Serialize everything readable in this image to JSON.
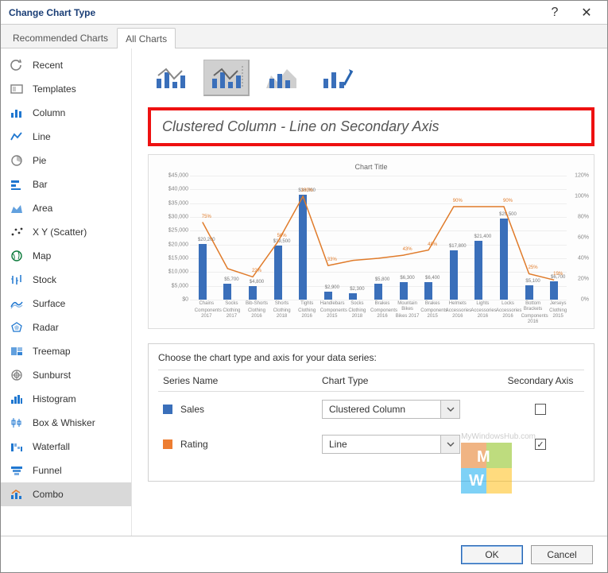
{
  "window": {
    "title": "Change Chart Type"
  },
  "tabs": {
    "recommended": "Recommended Charts",
    "all": "All Charts"
  },
  "sidebar": {
    "items": [
      {
        "key": "recent",
        "label": "Recent",
        "color": "#7f7f7f"
      },
      {
        "key": "templates",
        "label": "Templates",
        "color": "#7f7f7f"
      },
      {
        "key": "column",
        "label": "Column",
        "color": "#1f77d0"
      },
      {
        "key": "line",
        "label": "Line",
        "color": "#1f77d0"
      },
      {
        "key": "pie",
        "label": "Pie",
        "color": "#7f7f7f"
      },
      {
        "key": "bar",
        "label": "Bar",
        "color": "#1f77d0"
      },
      {
        "key": "area",
        "label": "Area",
        "color": "#1f77d0"
      },
      {
        "key": "xyscatter",
        "label": "X Y (Scatter)",
        "color": "#333"
      },
      {
        "key": "map",
        "label": "Map",
        "color": "#0b7a3b"
      },
      {
        "key": "stock",
        "label": "Stock",
        "color": "#1f77d0"
      },
      {
        "key": "surface",
        "label": "Surface",
        "color": "#1f77d0"
      },
      {
        "key": "radar",
        "label": "Radar",
        "color": "#1f77d0"
      },
      {
        "key": "treemap",
        "label": "Treemap",
        "color": "#1f77d0"
      },
      {
        "key": "sunburst",
        "label": "Sunburst",
        "color": "#7f7f7f"
      },
      {
        "key": "histogram",
        "label": "Histogram",
        "color": "#1f77d0"
      },
      {
        "key": "boxwhisker",
        "label": "Box & Whisker",
        "color": "#1f77d0"
      },
      {
        "key": "waterfall",
        "label": "Waterfall",
        "color": "#1f77d0"
      },
      {
        "key": "funnel",
        "label": "Funnel",
        "color": "#1f77d0"
      },
      {
        "key": "combo",
        "label": "Combo",
        "color": "#1f77d0"
      }
    ],
    "selected": "combo"
  },
  "subtype": {
    "selected_index": 1,
    "heading": "Clustered Column - Line on Secondary Axis",
    "heading_border_color": "#e11",
    "heading_fontsize": 18
  },
  "preview_chart": {
    "type": "combo",
    "title": "Chart Title",
    "title_fontsize": 9,
    "background": "#fdfdfd",
    "grid_color": "#eeeeee",
    "bar_color": "#3a6fba",
    "line_color": "#e07b2a",
    "line_width": 1.5,
    "y_left": {
      "min": 0,
      "max": 45000,
      "step": 5000,
      "format": "currency"
    },
    "y_right": {
      "min": 0,
      "max": 120,
      "step": 20,
      "suffix": "%"
    },
    "categories": [
      {
        "name": "Chains",
        "sub": "Components 2017"
      },
      {
        "name": "Socks",
        "sub": "Clothing 2017"
      },
      {
        "name": "Bib-Shorts",
        "sub": "Clothing 2016"
      },
      {
        "name": "Shorts",
        "sub": "Clothing 2018"
      },
      {
        "name": "Tights",
        "sub": "Clothing 2016"
      },
      {
        "name": "Handlebars",
        "sub": "Components 2015"
      },
      {
        "name": "Socks",
        "sub": "Clothing 2018"
      },
      {
        "name": "Brakes",
        "sub": "Components 2016"
      },
      {
        "name": "Mountain Bikes",
        "sub": "Bikes 2017"
      },
      {
        "name": "Brakes",
        "sub": "Components 2015"
      },
      {
        "name": "Helmets",
        "sub": "Accessories 2016"
      },
      {
        "name": "Lights",
        "sub": "Accessories 2016"
      },
      {
        "name": "Locks",
        "sub": "Accessories 2016"
      },
      {
        "name": "Bottom Brackets",
        "sub": "Components 2016"
      },
      {
        "name": "Jerseys",
        "sub": "Clothing 2015"
      }
    ],
    "bar_values": [
      20200,
      5700,
      4800,
      19500,
      38000,
      2900,
      2300,
      5800,
      6300,
      6400,
      17800,
      21400,
      29500,
      5100,
      6700
    ],
    "bar_labels": [
      "$20,200",
      "$5,700",
      "$4,800",
      "$19,500",
      "$38,000",
      "$2,900",
      "$2,300",
      "$5,800",
      "$6,300",
      "$6,400",
      "$17,800",
      "$21,400",
      "$29,500",
      "$5,100",
      "$6,700"
    ],
    "line_values_pct": [
      75,
      30,
      22,
      56,
      100,
      33,
      38,
      40,
      43,
      48,
      90,
      90,
      90,
      25,
      19
    ],
    "line_labels": [
      "75%",
      "",
      "22%",
      "56%",
      "100%",
      "33%",
      "",
      "",
      "43%",
      "48%",
      "90%",
      "",
      "90%",
      "25%",
      "19%"
    ]
  },
  "series_config": {
    "caption": "Choose the chart type and axis for your data series:",
    "headers": {
      "name": "Series Name",
      "type": "Chart Type",
      "axis": "Secondary Axis"
    },
    "rows": [
      {
        "name": "Sales",
        "color": "#3a6fba",
        "chart_type": "Clustered Column",
        "secondary": false
      },
      {
        "name": "Rating",
        "color": "#ed7d31",
        "chart_type": "Line",
        "secondary": true
      }
    ]
  },
  "buttons": {
    "ok": "OK",
    "cancel": "Cancel"
  },
  "watermark": {
    "text_top": "MyWindowsHub.com",
    "colors": [
      "#e26b0a",
      "#7fba00",
      "#00a4ef",
      "#ffb900"
    ],
    "letters": [
      "M",
      "W"
    ]
  }
}
